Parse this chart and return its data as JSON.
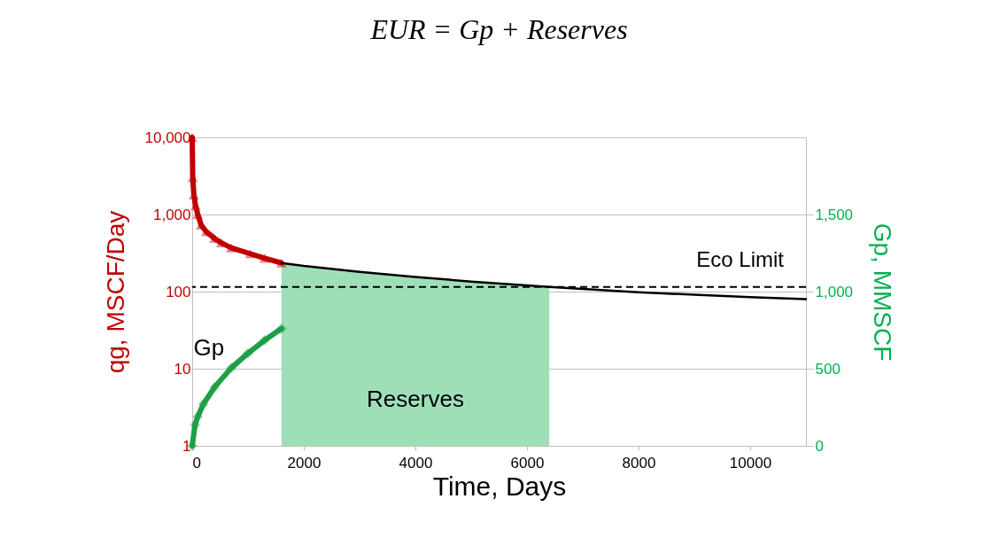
{
  "chart_data": {
    "type": "line",
    "title": "EUR = Gp + Reserves",
    "xlabel": "Time, Days",
    "ylabel": "qg, MSCF/Day",
    "y2label": "Gp,  MMSCF",
    "log": "y",
    "grid": "y",
    "legend": false,
    "xlim": [
      0,
      11000
    ],
    "xticks": [
      0,
      2000,
      4000,
      6000,
      8000,
      10000
    ],
    "ylim": [
      1,
      10000
    ],
    "yticks": [
      1,
      10,
      100,
      {
        "value": 1000,
        "label": "1,000"
      },
      {
        "value": 10000,
        "label": "10,000"
      }
    ],
    "y2lim": [
      0,
      2000
    ],
    "y2ticks": [
      0,
      500,
      {
        "value": 1000,
        "label": "1,000"
      },
      {
        "value": 1500,
        "label": "1,500"
      }
    ],
    "series": [
      {
        "type": "area",
        "name": "Reserves",
        "color": "#9fdfb8",
        "x": [
          1600,
          2000,
          3000,
          4000,
          5000,
          6000,
          6400
        ],
        "values": [
          235,
          215,
          180,
          155,
          135,
          120,
          115
        ]
      },
      {
        "color": "#c00000",
        "marker": "triangle",
        "x": [
          0,
          10,
          30,
          60,
          100,
          160,
          250,
          400,
          520,
          700,
          1040,
          1300,
          1600
        ],
        "values": [
          10000,
          3000,
          1800,
          1300,
          1000,
          730,
          600,
          490,
          430,
          370,
          310,
          270,
          235
        ]
      },
      {
        "color": "#000000",
        "marker": "none",
        "x": [
          1600,
          2000,
          3000,
          4000,
          5000,
          6000,
          6400,
          7000,
          8000,
          9000,
          10000,
          11000
        ],
        "values": [
          235,
          215,
          180,
          155,
          135,
          120,
          115,
          108,
          98,
          91,
          85,
          80
        ]
      },
      {
        "name": "Gp",
        "axis": "y2",
        "color": "#1e9e45",
        "marker": "diamond",
        "x": [
          0,
          50,
          100,
          200,
          400,
          700,
          1000,
          1300,
          1600
        ],
        "values": [
          0,
          135,
          190,
          270,
          380,
          505,
          600,
          685,
          760
        ]
      }
    ],
    "ref_lines": [
      {
        "axis": "y",
        "value": 115,
        "label": "Eco Limit",
        "color": "#000000",
        "line_style": "dashed"
      }
    ]
  }
}
